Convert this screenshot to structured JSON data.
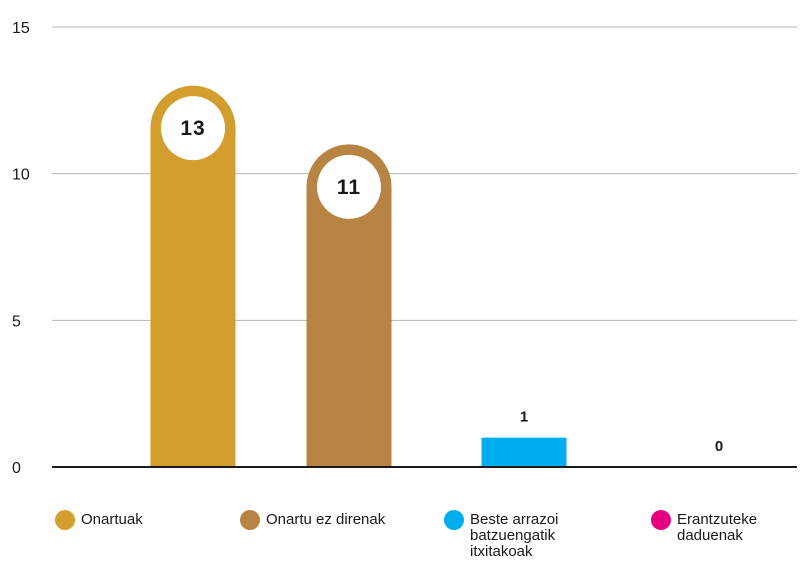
{
  "chart_data": {
    "type": "bar",
    "categories": [
      "Onartuak",
      "Onartu ez direnak",
      "Beste arrazoi batzuengatik itxitakoak",
      "Erantzuteke daduenak"
    ],
    "values": [
      13,
      11,
      1,
      0
    ],
    "value_labels": [
      "13",
      "11",
      "1",
      "0"
    ],
    "colors": [
      "#D49E2E",
      "#B88443",
      "#00AEEF",
      "#E6007E"
    ],
    "ylim": [
      0,
      15
    ],
    "yticks": [
      0,
      5,
      10,
      15
    ],
    "ytick_labels": [
      "0",
      "5",
      "10",
      "15"
    ],
    "grid": true,
    "legend_position": "bottom",
    "legend": [
      {
        "lines": [
          "Onartuak"
        ]
      },
      {
        "lines": [
          "Onartu ez direnak"
        ]
      },
      {
        "lines": [
          "Beste arrazoi",
          "batzuengatik",
          "itxitakoak"
        ]
      },
      {
        "lines": [
          "Erantzuteke",
          "daduenak"
        ]
      }
    ],
    "title": "",
    "xlabel": "",
    "ylabel": ""
  }
}
